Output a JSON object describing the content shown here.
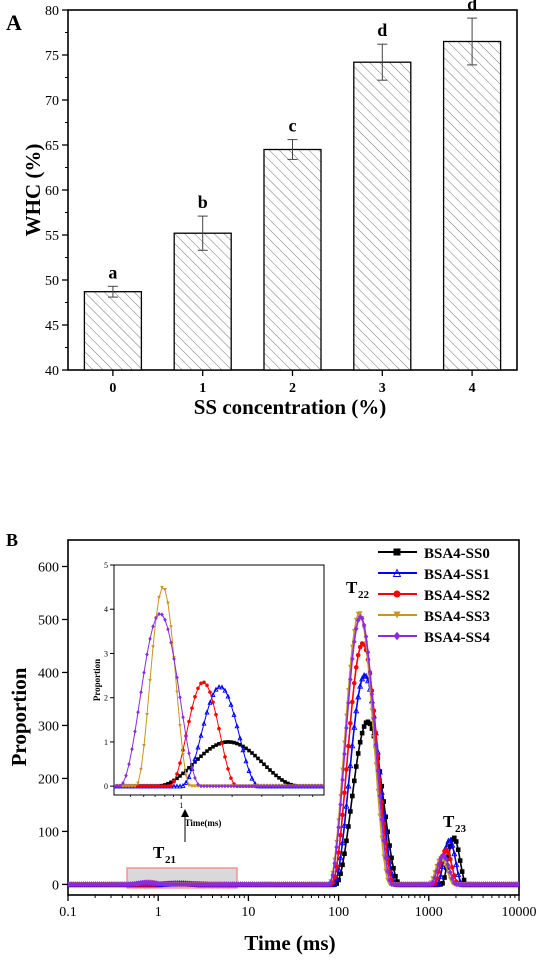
{
  "chart_data": [
    {
      "panel": "A",
      "type": "bar",
      "title": "",
      "xlabel": "SS concentration (%)",
      "ylabel": "WHC (%)",
      "categories": [
        "0",
        "1",
        "2",
        "3",
        "4"
      ],
      "values": [
        48.7,
        55.2,
        64.5,
        74.2,
        76.5
      ],
      "errors": [
        0.6,
        1.9,
        1.1,
        2.0,
        2.6
      ],
      "significance_labels": [
        "a",
        "b",
        "c",
        "d",
        "d"
      ],
      "ylim": [
        40,
        80
      ],
      "yticks": [
        40,
        45,
        50,
        55,
        60,
        65,
        70,
        75,
        80
      ],
      "bar_fill": "hatched",
      "grid": false
    },
    {
      "panel": "B",
      "type": "line",
      "title": "",
      "xlabel": "Time (ms)",
      "ylabel": "Proportion",
      "xscale": "log",
      "xlim": [
        0.1,
        10000
      ],
      "xticks": [
        "0.1",
        "1",
        "10",
        "100",
        "1000",
        "10000"
      ],
      "ylim": [
        -20,
        650
      ],
      "yticks": [
        0,
        100,
        200,
        300,
        400,
        500,
        600
      ],
      "legend_position": "top-right",
      "peak_labels": [
        {
          "text": "T",
          "sub": "21"
        },
        {
          "text": "T",
          "sub": "22"
        },
        {
          "text": "T",
          "sub": "23"
        }
      ],
      "series": [
        {
          "name": "BSA4-SS0",
          "color": "#000000",
          "marker": "square",
          "peaks": [
            {
              "center": 210,
              "height": 307,
              "half_width_log": 0.36
            },
            {
              "center": 1900,
              "height": 88,
              "half_width_log": 0.14
            }
          ],
          "small_peak": {
            "center": 1.9,
            "height": 1.0,
            "half_width_log": 0.42
          }
        },
        {
          "name": "BSA4-SS1",
          "color": "#0000ff",
          "marker": "triangle-up",
          "peaks": [
            {
              "center": 195,
              "height": 395,
              "half_width_log": 0.35
            },
            {
              "center": 1700,
              "height": 84,
              "half_width_log": 0.14
            }
          ],
          "small_peak": {
            "center": 1.7,
            "height": 2.25,
            "half_width_log": 0.23
          }
        },
        {
          "name": "BSA4-SS2",
          "color": "#ff0000",
          "marker": "circle",
          "peaks": [
            {
              "center": 185,
              "height": 455,
              "half_width_log": 0.35
            },
            {
              "center": 1550,
              "height": 65,
              "half_width_log": 0.14
            }
          ],
          "small_peak": {
            "center": 1.35,
            "height": 2.35,
            "half_width_log": 0.2
          }
        },
        {
          "name": "BSA4-SS3",
          "color": "#c8961e",
          "marker": "triangle-down",
          "peaks": [
            {
              "center": 170,
              "height": 512,
              "half_width_log": 0.34
            },
            {
              "center": 1380,
              "height": 50,
              "half_width_log": 0.14
            }
          ],
          "small_peak": {
            "center": 0.78,
            "height": 4.5,
            "half_width_log": 0.16
          }
        },
        {
          "name": "BSA4-SS4",
          "color": "#8a2be2",
          "marker": "diamond",
          "peaks": [
            {
              "center": 175,
              "height": 505,
              "half_width_log": 0.35
            },
            {
              "center": 1450,
              "height": 55,
              "half_width_log": 0.14
            }
          ],
          "small_peak": {
            "center": 0.75,
            "height": 3.9,
            "half_width_log": 0.24
          }
        }
      ],
      "inset": {
        "xlabel": "Time(ms)",
        "ylabel": "Proportion",
        "xscale": "log",
        "xlim": [
          0.4,
          7
        ],
        "xticks": [
          "1"
        ],
        "ylim": [
          -0.2,
          5
        ],
        "yticks": [
          0,
          1,
          2,
          3,
          4,
          5
        ]
      }
    }
  ]
}
